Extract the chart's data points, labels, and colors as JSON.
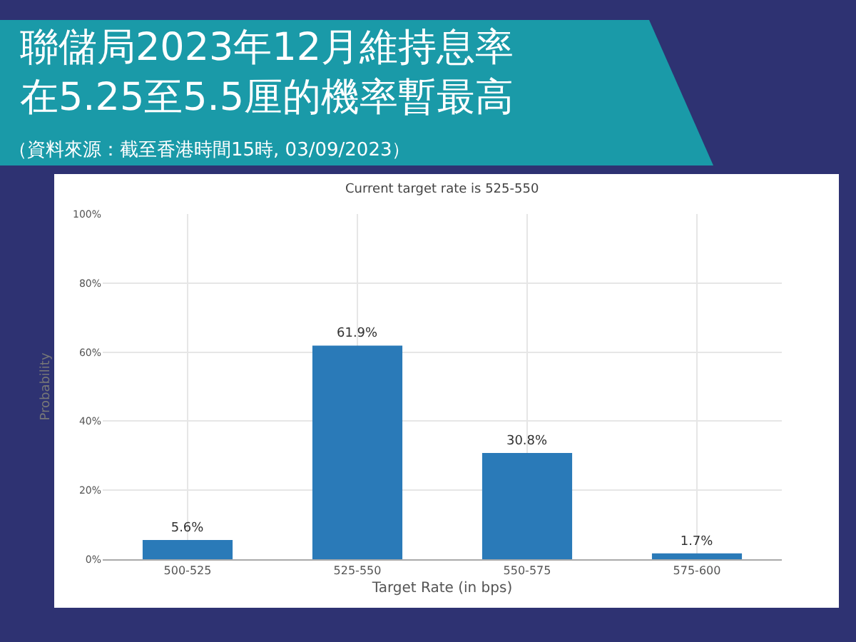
{
  "chart_data": {
    "type": "bar",
    "title": "聯儲局2023年12月維持息率在5.25至5.5厘的機率暫最高",
    "subtitle": "Current target rate is 525-550",
    "annotations": [
      "（資料來源：截至香港時間15時, 03/09/2023）"
    ],
    "xlabel": "Target Rate (in bps)",
    "ylabel": "Probability",
    "categories": [
      "500-525",
      "525-550",
      "550-575",
      "575-600"
    ],
    "values": [
      5.6,
      61.9,
      30.8,
      1.7
    ],
    "value_labels": [
      "5.6%",
      "61.9%",
      "30.8%",
      "1.7%"
    ],
    "color": "#2a7ab8",
    "ylim": [
      0,
      100
    ],
    "yticks": [
      {
        "value": 0,
        "label": "0%"
      },
      {
        "value": 20,
        "label": "20%"
      },
      {
        "value": 40,
        "label": "40%"
      },
      {
        "value": 60,
        "label": "60%"
      },
      {
        "value": 80,
        "label": "80%"
      },
      {
        "value": 100,
        "label": "100%"
      }
    ],
    "grid": true,
    "legend": false
  }
}
